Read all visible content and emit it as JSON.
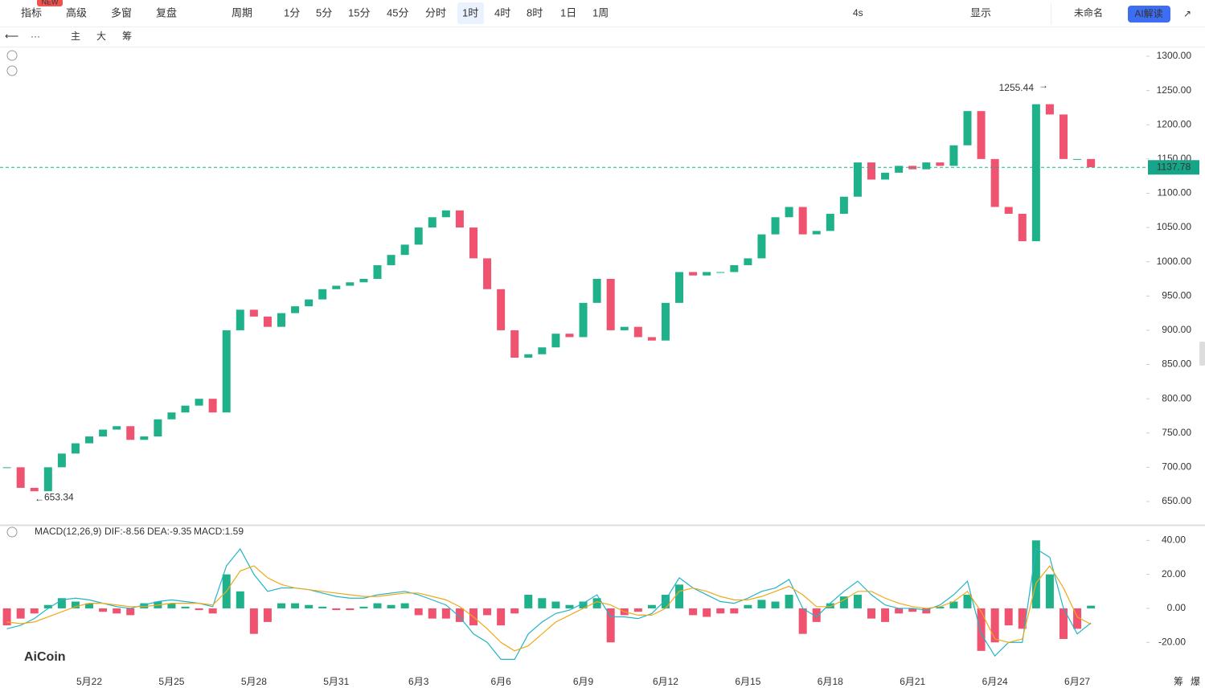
{
  "toolbar": {
    "left": [
      "指标",
      "高级",
      "多窗",
      "复盘"
    ],
    "badge": "NEW",
    "period_menu": "周期",
    "periods": [
      "1分",
      "5分",
      "15分",
      "45分",
      "分时",
      "1时",
      "4时",
      "8时",
      "1日",
      "1周"
    ],
    "refresh": "4s",
    "display": "显示",
    "layout_name": "未命名",
    "ai_button": "AI解读",
    "tools": [
      "主",
      "大",
      "筹"
    ]
  },
  "logo": "AiCoin",
  "side_tabs": [
    "筹",
    "爆"
  ],
  "chart_data": [
    {
      "type": "candlestick",
      "up_color": "#1fb28a",
      "down_color": "#ef5370",
      "values": [
        700,
        670,
        665,
        700,
        720,
        735,
        745,
        755,
        760,
        740,
        745,
        770,
        780,
        790,
        800,
        780,
        900,
        930,
        920,
        905,
        925,
        935,
        945,
        960,
        965,
        970,
        975,
        995,
        1010,
        1025,
        1050,
        1065,
        1075,
        1050,
        1005,
        960,
        900,
        860,
        865,
        875,
        895,
        890,
        940,
        975,
        900,
        905,
        890,
        885,
        940,
        985,
        980,
        985,
        985,
        995,
        1005,
        1040,
        1065,
        1080,
        1040,
        1045,
        1070,
        1095,
        1145,
        1120,
        1130,
        1140,
        1135,
        1145,
        1140,
        1170,
        1220,
        1150,
        1080,
        1070,
        1030,
        1230,
        1215,
        1150,
        1150,
        1138
      ],
      "ylim": [
        617.15,
        1314.08
      ],
      "yticks": [
        {
          "value": 1300,
          "label": "1300.00"
        },
        {
          "value": 1250,
          "label": "1250.00"
        },
        {
          "value": 1200,
          "label": "1200.00"
        },
        {
          "value": 1150,
          "label": "1150.00"
        },
        {
          "value": 1100,
          "label": "1100.00"
        },
        {
          "value": 1050,
          "label": "1050.00"
        },
        {
          "value": 1000,
          "label": "1000.00"
        },
        {
          "value": 950,
          "label": "950.00"
        },
        {
          "value": 900,
          "label": "900.00"
        },
        {
          "value": 850,
          "label": "850.00"
        },
        {
          "value": 800,
          "label": "800.00"
        },
        {
          "value": 750,
          "label": "750.00"
        },
        {
          "value": 700,
          "label": "700.00"
        },
        {
          "value": 650,
          "label": "650.00"
        }
      ],
      "last_price": {
        "value": 1137.78,
        "label": "1137.78"
      },
      "high": {
        "value": 1255.44,
        "label": "1255.44"
      },
      "low": {
        "value": 653.34,
        "label": "653.34"
      },
      "grid": false
    },
    {
      "type": "macd",
      "title": "MACD(12,26,9)",
      "legend": [
        "DIF:-8.56",
        "DEA:-9.35",
        "MACD:1.59"
      ],
      "categories": [
        null,
        null,
        null,
        null,
        null,
        null,
        "5月22",
        null,
        null,
        null,
        null,
        null,
        "5月25",
        null,
        null,
        null,
        null,
        null,
        "5月28",
        null,
        null,
        null,
        null,
        null,
        "5月31",
        null,
        null,
        null,
        null,
        null,
        "6月3",
        null,
        null,
        null,
        null,
        null,
        "6月6",
        null,
        null,
        null,
        null,
        null,
        "6月9",
        null,
        null,
        null,
        null,
        null,
        "6月12",
        null,
        null,
        null,
        null,
        null,
        "6月15",
        null,
        null,
        null,
        null,
        null,
        "6月18",
        null,
        null,
        null,
        null,
        null,
        "6月21",
        null,
        null,
        null,
        null,
        null,
        "6月24",
        null,
        null,
        null,
        null,
        null,
        "6月27",
        null
      ],
      "histogram": [
        -10,
        -6,
        -3,
        2,
        6,
        4,
        3,
        -2,
        -3,
        -4,
        3,
        4,
        3,
        1,
        -1,
        -3,
        20,
        10,
        -15,
        -8,
        3,
        3,
        2,
        1,
        -1,
        -1,
        1,
        3,
        2,
        3,
        -4,
        -6,
        -6,
        -8,
        -10,
        -4,
        -10,
        -3,
        8,
        6,
        4,
        2,
        4,
        6,
        -20,
        -4,
        -2,
        2,
        8,
        14,
        -4,
        -5,
        -3,
        -3,
        2,
        5,
        4,
        8,
        -15,
        -8,
        3,
        7,
        8,
        -6,
        -8,
        -3,
        -2,
        -3,
        1,
        4,
        8,
        -25,
        -20,
        -10,
        -12,
        40,
        20,
        -18,
        -12,
        1.59
      ],
      "series": [
        {
          "name": "DIF",
          "color": "#22b4c8",
          "values": [
            -12,
            -10,
            -6,
            0,
            5,
            6,
            5,
            3,
            1,
            0,
            2,
            4,
            5,
            4,
            3,
            1,
            25,
            35,
            20,
            10,
            12,
            12,
            11,
            9,
            7,
            6,
            6,
            8,
            9,
            10,
            8,
            5,
            2,
            -5,
            -15,
            -20,
            -30,
            -30,
            -15,
            -8,
            -3,
            -1,
            3,
            8,
            -5,
            -5,
            -6,
            -3,
            5,
            18,
            12,
            8,
            4,
            3,
            6,
            10,
            12,
            17,
            0,
            -5,
            3,
            10,
            16,
            8,
            2,
            0,
            0,
            -1,
            2,
            8,
            16,
            -15,
            -28,
            -20,
            -20,
            35,
            30,
            0,
            -15,
            -8.56
          ]
        },
        {
          "name": "DEA",
          "color": "#f0a818",
          "values": [
            -8,
            -9,
            -8,
            -5,
            -2,
            1,
            3,
            3,
            2,
            1,
            1,
            2,
            3,
            3,
            3,
            2,
            10,
            22,
            25,
            18,
            14,
            12,
            11,
            10,
            9,
            8,
            7,
            7,
            8,
            9,
            9,
            7,
            5,
            1,
            -5,
            -12,
            -20,
            -25,
            -22,
            -15,
            -8,
            -4,
            0,
            4,
            2,
            -2,
            -4,
            -4,
            0,
            10,
            12,
            10,
            7,
            5,
            5,
            7,
            10,
            13,
            8,
            1,
            1,
            5,
            10,
            10,
            6,
            3,
            1,
            0,
            1,
            4,
            10,
            -2,
            -18,
            -20,
            -18,
            15,
            25,
            12,
            -5,
            -9.35
          ]
        }
      ],
      "ylim": [
        -36.9,
        48.2
      ],
      "yticks": [
        {
          "value": 40,
          "label": "40.00"
        },
        {
          "value": 20,
          "label": "20.00"
        },
        {
          "value": 0,
          "label": "0.00"
        },
        {
          "value": -20,
          "label": "-20.00"
        }
      ]
    }
  ]
}
